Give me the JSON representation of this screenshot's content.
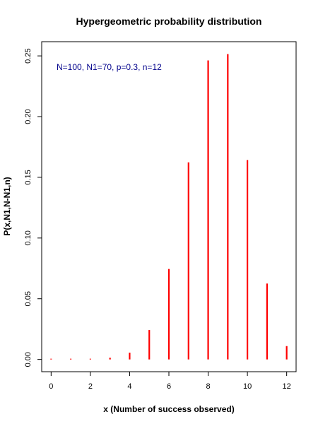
{
  "chart_data": {
    "type": "bar",
    "title": "Hypergeometric probability distribution",
    "xlabel": "x (Number of success observed)",
    "ylabel": "P(x,N1,N-N1,n)",
    "annotation": "N=100, N1=70, p=0.3, n=12",
    "x": [
      0,
      1,
      2,
      3,
      4,
      5,
      6,
      7,
      8,
      9,
      10,
      11,
      12
    ],
    "values": [
      0.0,
      0.0,
      0.0002,
      0.0014,
      0.0056,
      0.0242,
      0.0745,
      0.1623,
      0.2463,
      0.2515,
      0.1642,
      0.0625,
      0.011
    ],
    "xlim": [
      -0.48,
      12.48
    ],
    "ylim": [
      -0.0101,
      0.2617
    ],
    "xticks": [
      0,
      2,
      4,
      6,
      8,
      10,
      12
    ],
    "yticks": [
      0.0,
      0.05,
      0.1,
      0.15,
      0.2,
      0.25
    ],
    "ytick_labels": [
      "0.00",
      "0.05",
      "0.10",
      "0.15",
      "0.20",
      "0.25"
    ],
    "grid": false,
    "bar_color": "#ff0000",
    "annotation_color": "#00008b"
  }
}
